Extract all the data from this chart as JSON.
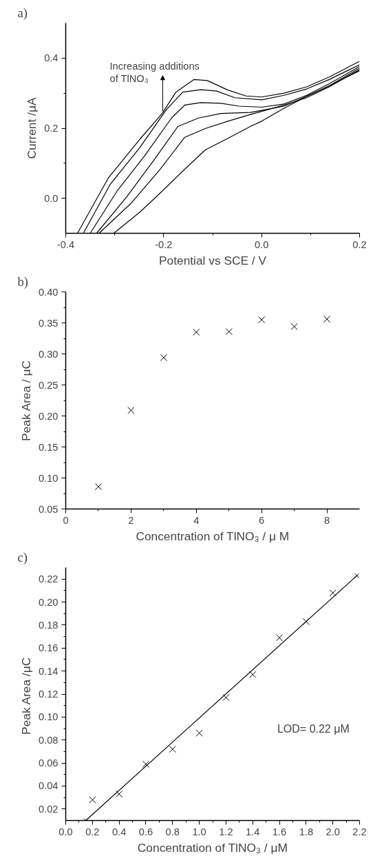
{
  "chart_data": [
    {
      "type": "line",
      "title": "a)",
      "xlabel": "Potential vs SCE / V",
      "ylabel": "Current /μA",
      "xlim": [
        -0.4,
        0.2
      ],
      "ylim": [
        -0.1,
        0.5
      ],
      "xticks": [
        -0.4,
        -0.2,
        {
          "value": 0,
          "label": "0.0"
        },
        0.2
      ],
      "yticks": [
        {
          "value": 0,
          "label": "0.0"
        },
        0.2,
        0.4
      ],
      "grid": false,
      "marker": "none",
      "line_style": "solid",
      "annotations": [
        "Increasing additions of TlNO₃"
      ],
      "series": [
        {
          "color": "#000000",
          "x": [
            -0.376,
            -0.313,
            -0.249,
            -0.203,
            -0.175,
            -0.138,
            -0.111,
            -0.069,
            -0.032,
            0.0,
            0.046,
            0.092,
            0.138,
            0.2
          ],
          "values": [
            -0.1,
            0.058,
            0.168,
            0.242,
            0.303,
            0.339,
            0.336,
            0.309,
            0.292,
            0.289,
            0.3,
            0.318,
            0.346,
            0.391
          ]
        },
        {
          "color": "#000000",
          "x": [
            -0.364,
            -0.309,
            -0.249,
            -0.194,
            -0.161,
            -0.124,
            -0.092,
            -0.055,
            0.0,
            0.046,
            0.092,
            0.138,
            0.2
          ],
          "values": [
            -0.1,
            0.04,
            0.144,
            0.254,
            0.303,
            0.31,
            0.306,
            0.287,
            0.281,
            0.294,
            0.312,
            0.339,
            0.381
          ]
        },
        {
          "color": "#000000",
          "x": [
            -0.35,
            -0.295,
            -0.24,
            -0.184,
            -0.157,
            -0.124,
            -0.083,
            -0.046,
            0.0,
            0.046,
            0.092,
            0.138,
            0.2
          ],
          "values": [
            -0.1,
            0.021,
            0.119,
            0.229,
            0.266,
            0.273,
            0.271,
            0.263,
            0.26,
            0.269,
            0.294,
            0.327,
            0.376
          ]
        },
        {
          "color": "#000000",
          "x": [
            -0.337,
            -0.276,
            -0.221,
            -0.171,
            -0.129,
            -0.083,
            -0.023,
            0.0,
            0.046,
            0.092,
            0.138,
            0.2
          ],
          "values": [
            -0.1,
            0.003,
            0.107,
            0.205,
            0.229,
            0.242,
            0.245,
            0.251,
            0.263,
            0.291,
            0.321,
            0.371
          ]
        },
        {
          "color": "#000000",
          "x": [
            -0.332,
            -0.267,
            -0.207,
            -0.157,
            -0.115,
            -0.069,
            -0.023,
            0.0,
            0.046,
            0.092,
            0.138,
            0.2
          ],
          "values": [
            -0.1,
            -0.015,
            0.083,
            0.174,
            0.199,
            0.22,
            0.239,
            0.248,
            0.266,
            0.287,
            0.318,
            0.367
          ]
        },
        {
          "color": "#000000",
          "x": [
            -0.302,
            -0.249,
            -0.207,
            -0.157,
            -0.115,
            -0.069,
            -0.023,
            0.0,
            0.046,
            0.092,
            0.138,
            0.2
          ],
          "values": [
            -0.1,
            -0.04,
            0.015,
            0.083,
            0.138,
            0.171,
            0.205,
            0.22,
            0.257,
            0.291,
            0.321,
            0.364
          ]
        }
      ]
    },
    {
      "type": "scatter",
      "title": "b)",
      "xlabel": "Concentration of TlNO₃ / μ M",
      "ylabel": "Peak Area / μC",
      "xlim": [
        0,
        9
      ],
      "ylim": [
        0.05,
        0.4
      ],
      "xticks": [
        0,
        2,
        4,
        6,
        8
      ],
      "yticks": [
        0.05,
        {
          "value": 0.1,
          "label": "0.10"
        },
        0.15,
        {
          "value": 0.2,
          "label": "0.20"
        },
        0.25,
        {
          "value": 0.3,
          "label": "0.30"
        },
        0.35,
        {
          "value": 0.4,
          "label": "0.40"
        }
      ],
      "grid": false,
      "marker": "cross",
      "series": [
        {
          "color": "#000000",
          "x": [
            1,
            2,
            3,
            4,
            5,
            6,
            7,
            8
          ],
          "values": [
            0.086,
            0.209,
            0.294,
            0.335,
            0.336,
            0.355,
            0.344,
            0.356
          ]
        }
      ]
    },
    {
      "type": "scatter",
      "title": "c)",
      "xlabel": "Concentration of TlNO₃ / μM",
      "ylabel": "Peak Area  /μC",
      "xlim": [
        0,
        2.2
      ],
      "ylim": [
        0.01,
        0.23
      ],
      "xticks": [
        {
          "value": 0,
          "label": "0.0"
        },
        0.2,
        0.4,
        0.6,
        0.8,
        {
          "value": 1,
          "label": "1.0"
        },
        1.2,
        1.4,
        1.6,
        1.8,
        {
          "value": 2,
          "label": "2.0"
        },
        2.2
      ],
      "yticks": [
        0.02,
        0.04,
        0.06,
        0.08,
        {
          "value": 0.1,
          "label": "0.10"
        },
        0.12,
        0.14,
        0.16,
        0.18,
        {
          "value": 0.2,
          "label": "0.20"
        },
        0.22
      ],
      "grid": false,
      "marker": "cross",
      "annotations": [
        "LOD= 0.22 μM"
      ],
      "series": [
        {
          "color": "#000000",
          "x": [
            0.2,
            0.4,
            0.6,
            0.8,
            1.0,
            1.2,
            1.4,
            1.6,
            1.8,
            2.0
          ],
          "values": [
            0.028,
            0.033,
            0.059,
            0.072,
            0.086,
            0.117,
            0.137,
            0.169,
            0.183,
            0.208
          ]
        },
        {
          "type": "line",
          "color": "#000000",
          "x": [
            0.15,
            2.18
          ],
          "values": [
            0.01,
            0.223
          ]
        }
      ]
    }
  ]
}
